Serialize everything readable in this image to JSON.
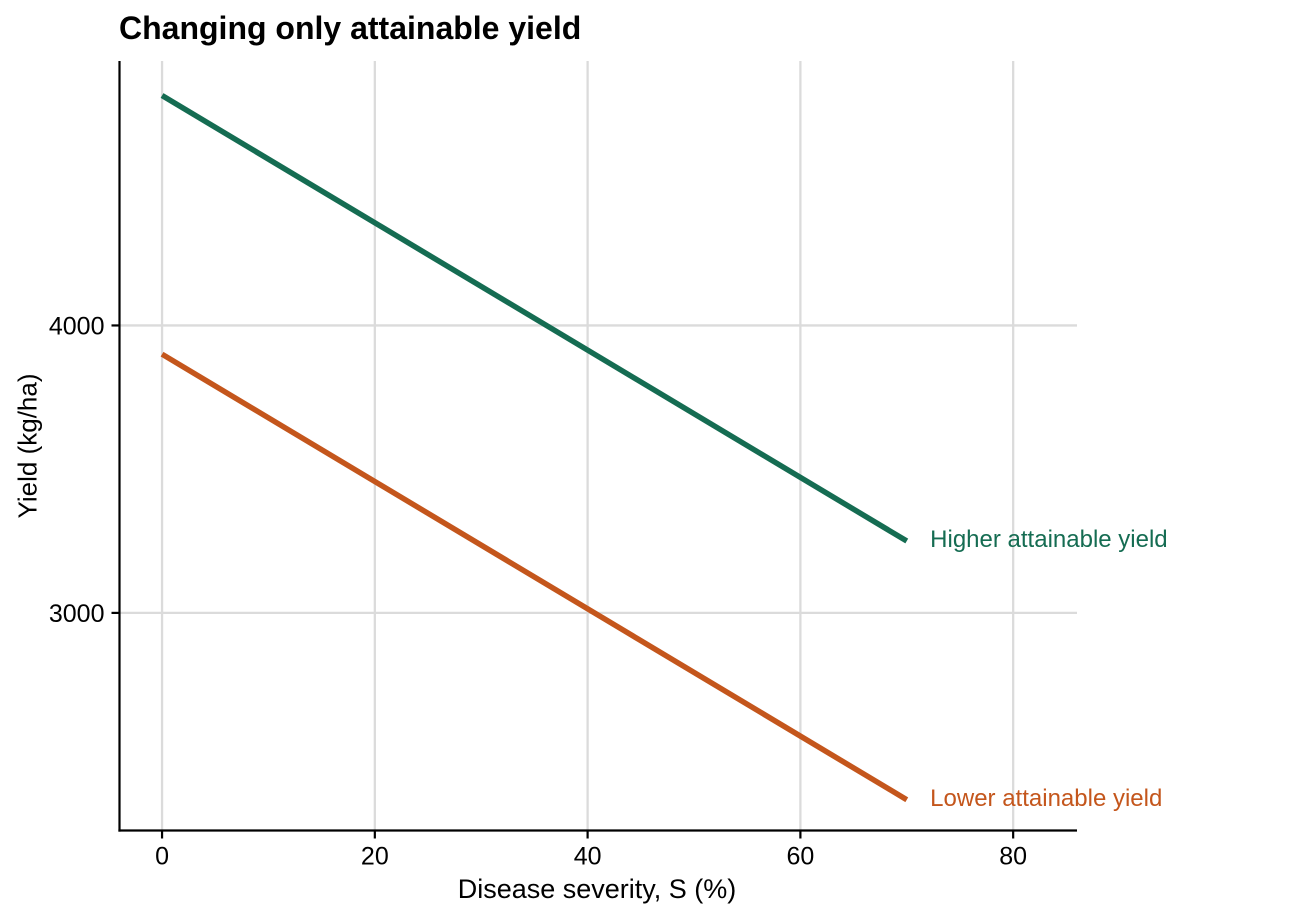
{
  "title": "Changing only attainable yield",
  "colors": {
    "background": "#FFFFFF",
    "grid": "#DBDBDB",
    "axis": "#000000",
    "text": "#000000",
    "higher_series": "#156C52",
    "lower_series": "#C4561C"
  },
  "chart_data": {
    "type": "line",
    "title": "Changing only attainable yield",
    "xlabel": "Disease severity, S (%)",
    "ylabel": "Yield (kg/ha)",
    "xlim": [
      -4,
      86
    ],
    "ylim": [
      2243,
      4920
    ],
    "x_ticks": [
      0,
      20,
      40,
      60,
      80
    ],
    "y_ticks": [
      3000,
      4000
    ],
    "grid": true,
    "legend_position": "direct-labels-right-of-lines",
    "series": [
      {
        "name": "Higher attainable yield",
        "color": "#156C52",
        "x": [
          0,
          70
        ],
        "y": [
          4800,
          3250
        ],
        "slope_kg_per_pct": -22.1
      },
      {
        "name": "Lower attainable yield",
        "color": "#C4561C",
        "x": [
          0,
          70
        ],
        "y": [
          3900,
          2350
        ],
        "slope_kg_per_pct": -22.1
      }
    ],
    "annotations": [
      {
        "text": "Higher attainable yield",
        "x": 72.2,
        "y": 3250,
        "color": "#156C52"
      },
      {
        "text": "Lower attainable yield",
        "x": 72.2,
        "y": 2350,
        "color": "#C4561C"
      }
    ]
  }
}
